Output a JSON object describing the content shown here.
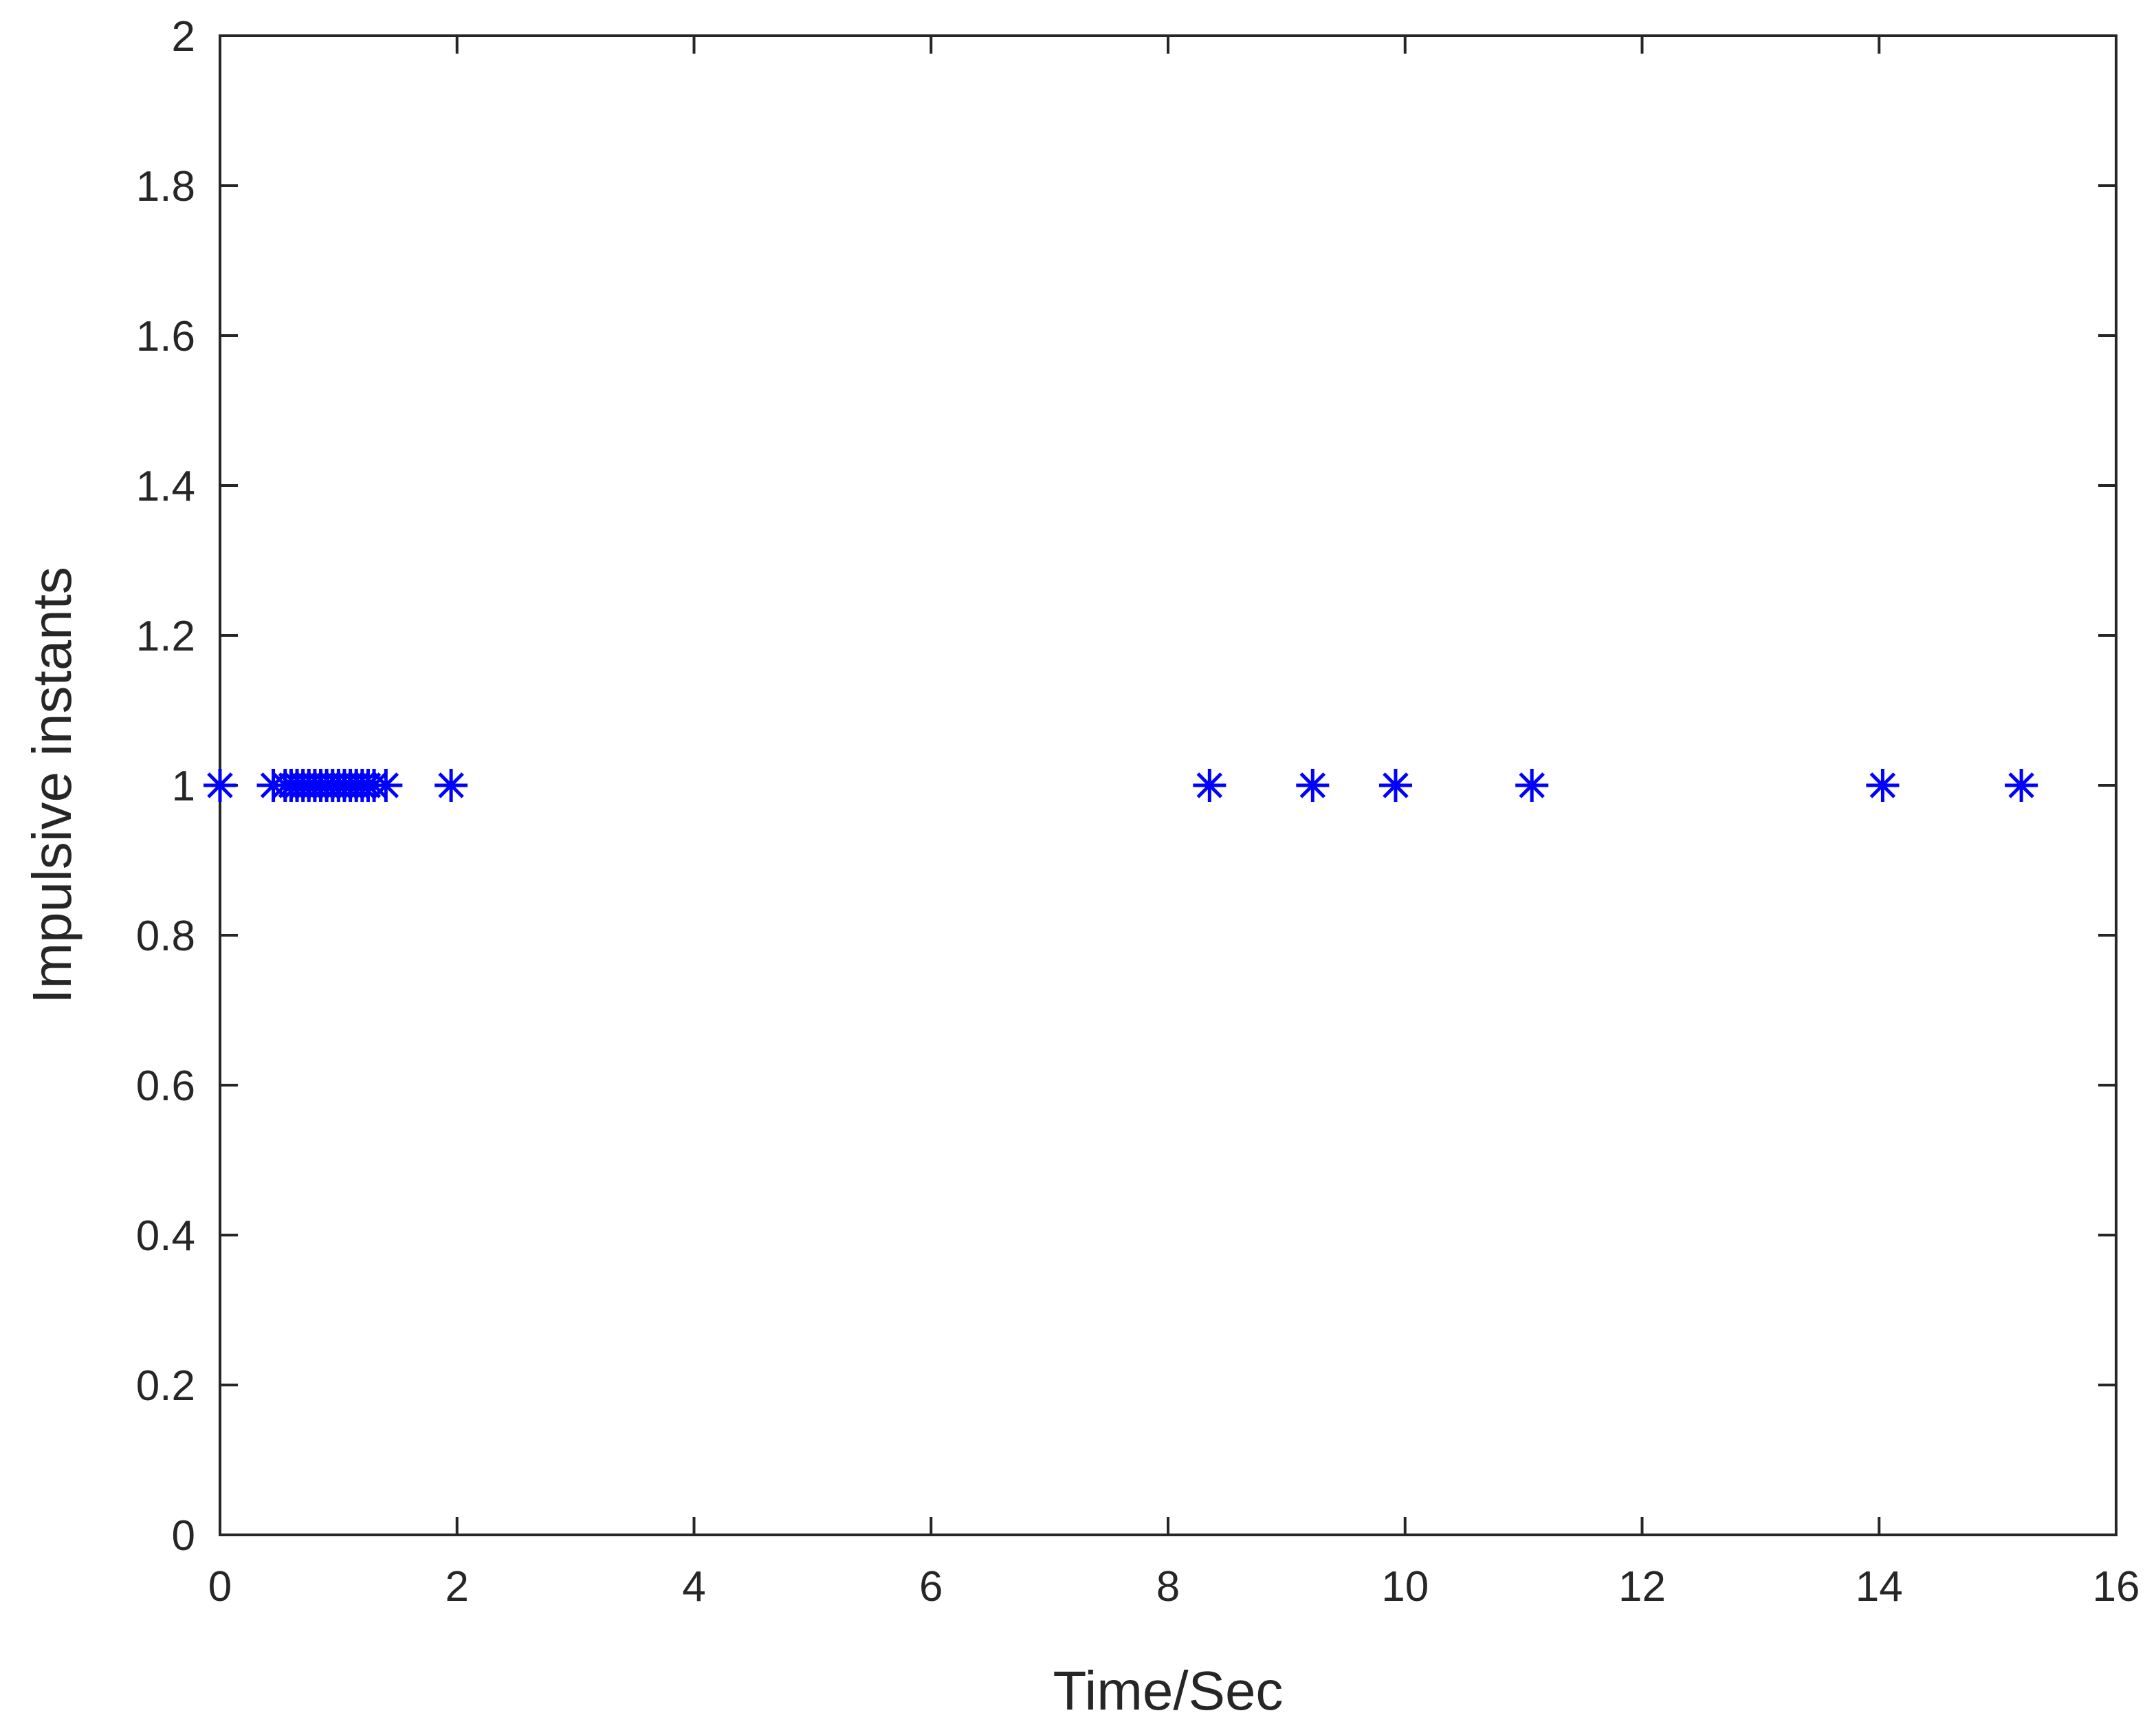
{
  "chart_data": {
    "type": "scatter",
    "xlabel": "Time/Sec",
    "ylabel": "Impulsive instants",
    "xlim": [
      0,
      16
    ],
    "ylim": [
      0,
      2
    ],
    "xticks": [
      "0",
      "2",
      "4",
      "6",
      "8",
      "10",
      "12",
      "14",
      "16"
    ],
    "yticks": [
      "0",
      "0.2",
      "0.4",
      "0.6",
      "0.8",
      "1",
      "1.2",
      "1.4",
      "1.6",
      "1.8",
      "2"
    ],
    "grid": false,
    "marker": "asterisk",
    "color": "#0000ff",
    "series": [
      {
        "x": [
          0.0,
          0.45,
          0.55,
          0.6,
          0.65,
          0.7,
          0.75,
          0.8,
          0.85,
          0.9,
          0.95,
          1.0,
          1.05,
          1.1,
          1.15,
          1.2,
          1.25,
          1.3,
          1.4,
          1.95,
          8.35,
          9.22,
          9.92,
          11.07,
          14.03,
          15.2
        ],
        "y": [
          1,
          1,
          1,
          1,
          1,
          1,
          1,
          1,
          1,
          1,
          1,
          1,
          1,
          1,
          1,
          1,
          1,
          1,
          1,
          1,
          1,
          1,
          1,
          1,
          1,
          1
        ]
      }
    ]
  }
}
